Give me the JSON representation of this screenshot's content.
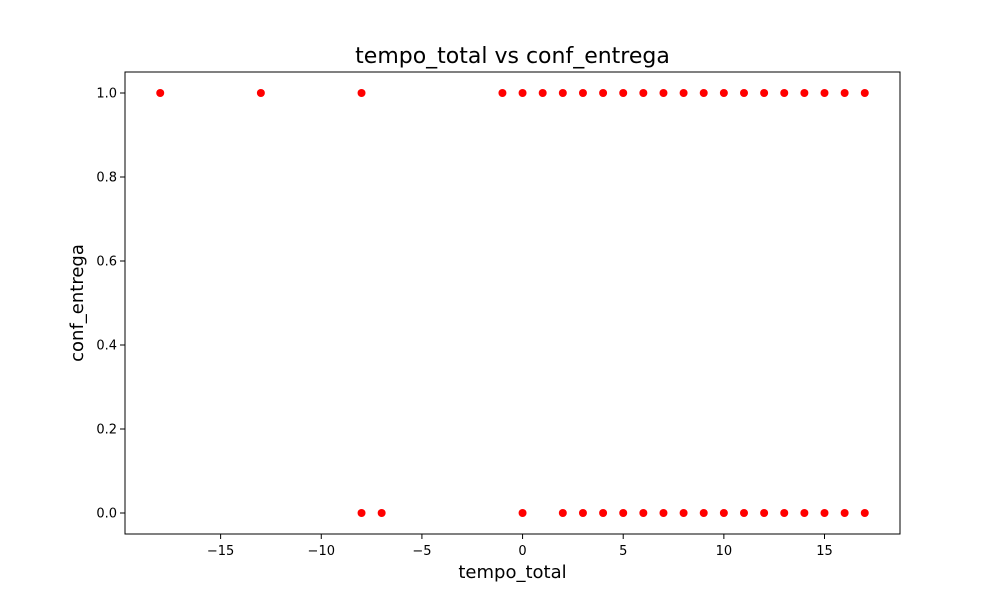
{
  "chart_data": {
    "type": "scatter",
    "title": "tempo_total vs conf_entrega",
    "xlabel": "tempo_total",
    "ylabel": "conf_entrega",
    "xlim": [
      -19.75,
      18.75
    ],
    "ylim": [
      -0.05,
      1.05
    ],
    "xticks": [
      -15,
      -10,
      -5,
      0,
      5,
      10,
      15
    ],
    "xtick_labels": [
      "−15",
      "−10",
      "−5",
      "0",
      "5",
      "10",
      "15"
    ],
    "yticks": [
      0.0,
      0.2,
      0.4,
      0.6,
      0.8,
      1.0
    ],
    "ytick_labels": [
      "0.0",
      "0.2",
      "0.4",
      "0.6",
      "0.8",
      "1.0"
    ],
    "grid": false,
    "marker_color": "#ff0000",
    "series": [
      {
        "points": [
          [
            -18,
            1
          ],
          [
            -13,
            1
          ],
          [
            -8,
            1
          ],
          [
            -1,
            1
          ],
          [
            0,
            1
          ],
          [
            1,
            1
          ],
          [
            2,
            1
          ],
          [
            3,
            1
          ],
          [
            4,
            1
          ],
          [
            5,
            1
          ],
          [
            6,
            1
          ],
          [
            7,
            1
          ],
          [
            8,
            1
          ],
          [
            9,
            1
          ],
          [
            10,
            1
          ],
          [
            11,
            1
          ],
          [
            12,
            1
          ],
          [
            13,
            1
          ],
          [
            14,
            1
          ],
          [
            15,
            1
          ],
          [
            16,
            1
          ],
          [
            17,
            1
          ],
          [
            -8,
            0
          ],
          [
            -7,
            0
          ],
          [
            0,
            0
          ],
          [
            2,
            0
          ],
          [
            3,
            0
          ],
          [
            4,
            0
          ],
          [
            5,
            0
          ],
          [
            6,
            0
          ],
          [
            7,
            0
          ],
          [
            8,
            0
          ],
          [
            9,
            0
          ],
          [
            10,
            0
          ],
          [
            11,
            0
          ],
          [
            12,
            0
          ],
          [
            13,
            0
          ],
          [
            14,
            0
          ],
          [
            15,
            0
          ],
          [
            16,
            0
          ],
          [
            17,
            0
          ]
        ]
      }
    ]
  }
}
